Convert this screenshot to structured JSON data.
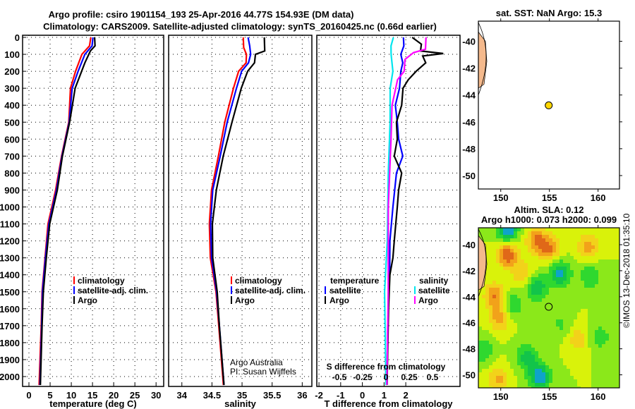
{
  "chart_data": [
    {
      "type": "line",
      "id": "temperature",
      "xlabel": "temperature (deg C)",
      "xlim": [
        -1.5,
        31.8
      ],
      "ylim": [
        0,
        2058
      ],
      "xticks": [
        0,
        5,
        10,
        15,
        20,
        25,
        30
      ],
      "yticks": [
        0,
        100,
        200,
        300,
        400,
        500,
        600,
        700,
        800,
        900,
        1000,
        1100,
        1200,
        1300,
        1400,
        1500,
        1600,
        1700,
        1800,
        1900,
        2000
      ],
      "legend": [
        "climatology",
        "satellite-adj. clim.",
        "Argo"
      ],
      "series": [
        {
          "name": "climatology",
          "color": "#ff0000",
          "depth": [
            0,
            50,
            100,
            200,
            300,
            500,
            700,
            900,
            1100,
            1300,
            1500,
            1700,
            2050
          ],
          "values": [
            14.6,
            14.2,
            12.6,
            10.9,
            9.9,
            9.3,
            7.8,
            6.2,
            4.6,
            3.7,
            3.2,
            2.8,
            2.4
          ]
        },
        {
          "name": "satellite-adj. clim.",
          "color": "#0000ff",
          "depth": [
            0,
            50,
            100,
            200,
            300,
            500,
            700,
            900,
            1100,
            1300,
            1500,
            1700,
            2050
          ],
          "values": [
            15.1,
            14.8,
            13.3,
            11.5,
            10.3,
            9.4,
            7.9,
            6.4,
            4.8,
            3.8,
            3.3,
            2.9,
            2.6
          ]
        },
        {
          "name": "Argo",
          "color": "#000000",
          "depth": [
            0,
            50,
            80,
            150,
            300,
            500,
            700,
            900,
            1100,
            1300,
            1500,
            1700,
            2050
          ],
          "values": [
            15.5,
            15.5,
            14.6,
            13.1,
            11.0,
            9.5,
            8.0,
            6.6,
            5.0,
            4.0,
            3.5,
            3.0,
            2.7
          ]
        }
      ]
    },
    {
      "type": "line",
      "id": "salinity",
      "xlabel": "salinity",
      "xlim": [
        33.78,
        36.16
      ],
      "xticks": [
        34,
        34.5,
        35,
        35.5,
        36
      ],
      "legend": [
        "climatology",
        "satellite-adj. clim.",
        "Argo"
      ],
      "annotation": [
        "Argo Australia",
        "PI: Susan Wijffels"
      ],
      "series": [
        {
          "name": "climatology",
          "color": "#ff0000",
          "depth": [
            0,
            60,
            100,
            150,
            200,
            300,
            500,
            700,
            900,
            1100,
            1300,
            1500,
            1700,
            2050
          ],
          "values": [
            35.02,
            35.02,
            35.08,
            35.06,
            34.95,
            34.85,
            34.72,
            34.6,
            34.5,
            34.45,
            34.48,
            34.56,
            34.62,
            34.69
          ]
        },
        {
          "name": "satellite-adj. clim.",
          "color": "#0000ff",
          "depth": [
            0,
            50,
            100,
            150,
            200,
            300,
            500,
            700,
            900,
            1100,
            1300,
            1500,
            1700,
            2050
          ],
          "values": [
            35.1,
            35.12,
            35.15,
            35.1,
            35.0,
            34.9,
            34.76,
            34.63,
            34.52,
            34.47,
            34.5,
            34.57,
            34.63,
            34.7
          ]
        },
        {
          "name": "Argo",
          "color": "#000000",
          "depth": [
            0,
            80,
            100,
            150,
            200,
            300,
            500,
            700,
            900,
            1100,
            1300,
            1500,
            1700,
            2050
          ],
          "values": [
            35.37,
            35.37,
            35.23,
            35.2,
            35.1,
            34.98,
            34.84,
            34.68,
            34.58,
            34.5,
            34.52,
            34.58,
            34.63,
            34.7
          ]
        }
      ]
    },
    {
      "type": "line",
      "id": "difference",
      "xlabel": "T difference from climatology",
      "x2label": "S difference from climatology",
      "xlim": [
        -2.1,
        4.5
      ],
      "xticks": [
        -2,
        -1,
        0,
        1,
        2
      ],
      "x2ticks": [
        -0.5,
        -0.25,
        0,
        0.25,
        0.5
      ],
      "legend_t": {
        "title": "temperature",
        "items": [
          "satellite",
          "Argo"
        ]
      },
      "legend_s": {
        "title": "salinity",
        "items": [
          "satellite",
          "Argo"
        ]
      },
      "series": [
        {
          "name": "temperature satellite",
          "color": "#0000ff",
          "axis": "T",
          "depth": [
            0,
            50,
            100,
            150,
            200,
            300,
            400,
            500,
            600,
            700,
            800,
            1000,
            1200,
            1400,
            1700,
            2050
          ],
          "values": [
            0.8,
            0.8,
            0.7,
            0.75,
            0.7,
            0.6,
            0.45,
            0.5,
            0.6,
            0.75,
            0.5,
            0.3,
            0.2,
            0.15,
            0.1,
            0.05
          ]
        },
        {
          "name": "temperature Argo",
          "color": "#000000",
          "axis": "T",
          "depth": [
            0,
            40,
            80,
            95,
            110,
            150,
            200,
            250,
            300,
            400,
            500,
            600,
            700,
            800,
            900,
            1000,
            1200,
            1300,
            1400,
            1600,
            2050
          ],
          "values": [
            1.2,
            1.6,
            1.6,
            2.6,
            1.7,
            1.8,
            1.4,
            1.0,
            0.8,
            0.7,
            0.5,
            0.5,
            0.4,
            0.7,
            0.6,
            0.5,
            0.4,
            0.3,
            0.2,
            0.1,
            0.05
          ]
        },
        {
          "name": "salinity satellite",
          "color": "#00e5ee",
          "axis": "S",
          "depth": [
            0,
            50,
            100,
            200,
            300,
            500,
            800,
            1200,
            1500,
            2050
          ],
          "values": [
            0.08,
            0.05,
            0.06,
            0.07,
            0.05,
            0.04,
            0.03,
            0.01,
            -0.01,
            0.0
          ]
        },
        {
          "name": "salinity Argo",
          "color": "#ff00ff",
          "axis": "S",
          "depth": [
            0,
            70,
            90,
            130,
            200,
            250,
            400,
            600,
            1000,
            1500,
            2050
          ],
          "values": [
            0.43,
            0.42,
            0.3,
            0.2,
            0.2,
            0.12,
            0.07,
            0.05,
            0.03,
            0.02,
            0.01
          ]
        }
      ]
    },
    {
      "type": "scatter",
      "id": "sst-map",
      "title": "sat. SST: NaN Argo: 15.3",
      "xlim": [
        147.7,
        162.2
      ],
      "ylim": [
        -51,
        -38.5
      ],
      "xticks": [
        150,
        155,
        160
      ],
      "yticks": [
        -40,
        -42,
        -44,
        -46,
        -48,
        -50
      ],
      "points": [
        {
          "lon": 154.93,
          "lat": -44.77
        }
      ],
      "marker_color": "#ffd700"
    },
    {
      "type": "heatmap",
      "id": "sla-map",
      "title": [
        "Altim. SLA: 0.12",
        "Argo h1000: 0.073 h2000: 0.099"
      ],
      "xlim": [
        147.7,
        162.2
      ],
      "ylim": [
        -51,
        -38.7
      ],
      "xticks": [
        150,
        155,
        160
      ],
      "yticks": [
        -40,
        -42,
        -44,
        -46,
        -48,
        -50
      ],
      "points": [
        {
          "lon": 154.93,
          "lat": -44.77
        }
      ]
    }
  ],
  "title": [
    "Argo profile: csiro 1901154_193 25-Apr-2016 44.77S 154.93E (DM data)",
    "Climatology: CARS2009. Satellite-adjusted climatology: synTS_20160425.nc (0.66d earlier)"
  ],
  "credit": "©IMOS 13-Dec-2018 01:35:10"
}
